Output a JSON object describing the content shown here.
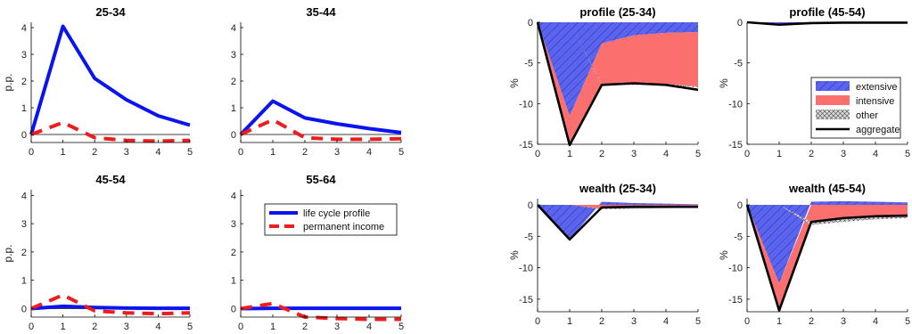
{
  "colors": {
    "life_cycle": "#0a14f0",
    "permanent": "#ee1c1c",
    "extensive": "#5a64f0",
    "intensive": "#fb6f6f",
    "other": "#c8c8c8",
    "aggregate": "#000000"
  },
  "chart_data": [
    {
      "type": "line",
      "title": "25-34",
      "ylabel": "p.p.",
      "x": [
        0,
        1,
        2,
        3,
        4,
        5
      ],
      "xlim": [
        0,
        5
      ],
      "ylim": [
        -0.3,
        4.2
      ],
      "yticks": [
        0,
        1,
        2,
        3,
        4
      ],
      "series": [
        {
          "key": "life",
          "values": [
            0,
            4.05,
            2.1,
            1.3,
            0.7,
            0.35
          ]
        },
        {
          "key": "perm",
          "values": [
            0,
            0.45,
            -0.12,
            -0.22,
            -0.25,
            -0.22
          ]
        }
      ]
    },
    {
      "type": "line",
      "title": "35-44",
      "ylabel": "",
      "x": [
        0,
        1,
        2,
        3,
        4,
        5
      ],
      "xlim": [
        0,
        5
      ],
      "ylim": [
        -0.3,
        4.2
      ],
      "yticks": [
        0,
        1,
        2,
        3,
        4
      ],
      "series": [
        {
          "key": "life",
          "values": [
            0,
            1.25,
            0.62,
            0.4,
            0.22,
            0.07
          ]
        },
        {
          "key": "perm",
          "values": [
            0,
            0.55,
            -0.12,
            -0.18,
            -0.18,
            -0.16
          ]
        }
      ]
    },
    {
      "type": "line",
      "title": "45-54",
      "ylabel": "p.p.",
      "x": [
        0,
        1,
        2,
        3,
        4,
        5
      ],
      "xlim": [
        0,
        5
      ],
      "ylim": [
        -0.3,
        4.2
      ],
      "yticks": [
        0,
        1,
        2,
        3,
        4
      ],
      "series": [
        {
          "key": "life",
          "values": [
            0,
            0.08,
            0.04,
            0.02,
            0.01,
            0.01
          ]
        },
        {
          "key": "perm",
          "values": [
            0,
            0.48,
            -0.08,
            -0.15,
            -0.18,
            -0.15
          ]
        }
      ]
    },
    {
      "type": "line",
      "title": "55-64",
      "ylabel": "",
      "x": [
        0,
        1,
        2,
        3,
        4,
        5
      ],
      "xlim": [
        0,
        5
      ],
      "ylim": [
        -0.3,
        4.2
      ],
      "yticks": [
        0,
        1,
        2,
        3,
        4
      ],
      "legend": {
        "position": "top-right",
        "entries": [
          "life cycle profile",
          "permanent income"
        ]
      },
      "series": [
        {
          "key": "life",
          "name": "life cycle profile",
          "values": [
            0,
            0.01,
            0.01,
            0.01,
            0.01,
            0.01
          ]
        },
        {
          "key": "perm",
          "name": "permanent income",
          "values": [
            0,
            0.18,
            -0.3,
            -0.35,
            -0.38,
            -0.38
          ]
        }
      ]
    },
    {
      "type": "area",
      "title": "profile (25-34)",
      "ylabel": "%",
      "x": [
        0,
        1,
        2,
        3,
        4,
        5
      ],
      "xlim": [
        0,
        5
      ],
      "ylim": [
        -15,
        0
      ],
      "yticks": [
        -15,
        -10,
        -5,
        0
      ],
      "extensive": [
        0,
        -11.5,
        -2.6,
        -1.6,
        -1.3,
        -1.2
      ],
      "intensive": [
        0,
        -3.5,
        -5.0,
        -6.0,
        -6.3,
        -6.7
      ],
      "other": [
        0,
        0,
        -0.1,
        -0.1,
        -0.1,
        -0.1
      ],
      "aggregate": [
        0,
        -15.1,
        -7.7,
        -7.5,
        -7.7,
        -8.3
      ]
    },
    {
      "type": "area",
      "title": "profile (45-54)",
      "ylabel": "%",
      "x": [
        0,
        1,
        2,
        3,
        4,
        5
      ],
      "xlim": [
        0,
        5
      ],
      "ylim": [
        -15,
        0
      ],
      "yticks": [
        -15,
        -10,
        -5,
        0
      ],
      "legend": {
        "position": "center-right",
        "entries": [
          "extensive",
          "intensive",
          "other",
          "aggregate"
        ]
      },
      "extensive": [
        0,
        -0.3,
        -0.1,
        -0.05,
        -0.05,
        -0.05
      ],
      "intensive": [
        0,
        0,
        0,
        0,
        0,
        0
      ],
      "other": [
        0,
        0,
        0,
        0,
        0,
        0
      ],
      "aggregate": [
        0,
        -0.3,
        -0.1,
        -0.05,
        -0.05,
        -0.05
      ]
    },
    {
      "type": "area",
      "title": "wealth (25-34)",
      "ylabel": "%",
      "x": [
        0,
        1,
        2,
        3,
        4,
        5
      ],
      "xlim": [
        0,
        5
      ],
      "ylim": [
        -17,
        1
      ],
      "yticks": [
        -15,
        -10,
        -5,
        0
      ],
      "extensive": [
        0,
        -5.5,
        0.5,
        0.3,
        0.2,
        0.1
      ],
      "intensive": [
        0,
        0,
        -0.6,
        -0.5,
        -0.4,
        -0.3
      ],
      "other": [
        0,
        0,
        -0.1,
        -0.1,
        -0.1,
        -0.1
      ],
      "aggregate": [
        0,
        -5.5,
        -0.4,
        -0.3,
        -0.3,
        -0.3
      ]
    },
    {
      "type": "area",
      "title": "wealth (45-54)",
      "ylabel": "%",
      "x": [
        0,
        1,
        2,
        3,
        4,
        5
      ],
      "xlim": [
        0,
        5
      ],
      "ylim": [
        -17,
        1
      ],
      "yticks": [
        -15,
        -10,
        -5,
        0
      ],
      "extensive": [
        0,
        -12.5,
        0.5,
        0.6,
        0.5,
        0.4
      ],
      "intensive": [
        0,
        -4.3,
        -2.7,
        -2.3,
        -2.0,
        -1.9
      ],
      "other": [
        0,
        0,
        -0.5,
        -0.4,
        -0.3,
        -0.2
      ],
      "aggregate": [
        0,
        -16.8,
        -2.7,
        -2.1,
        -1.8,
        -1.7
      ]
    }
  ]
}
